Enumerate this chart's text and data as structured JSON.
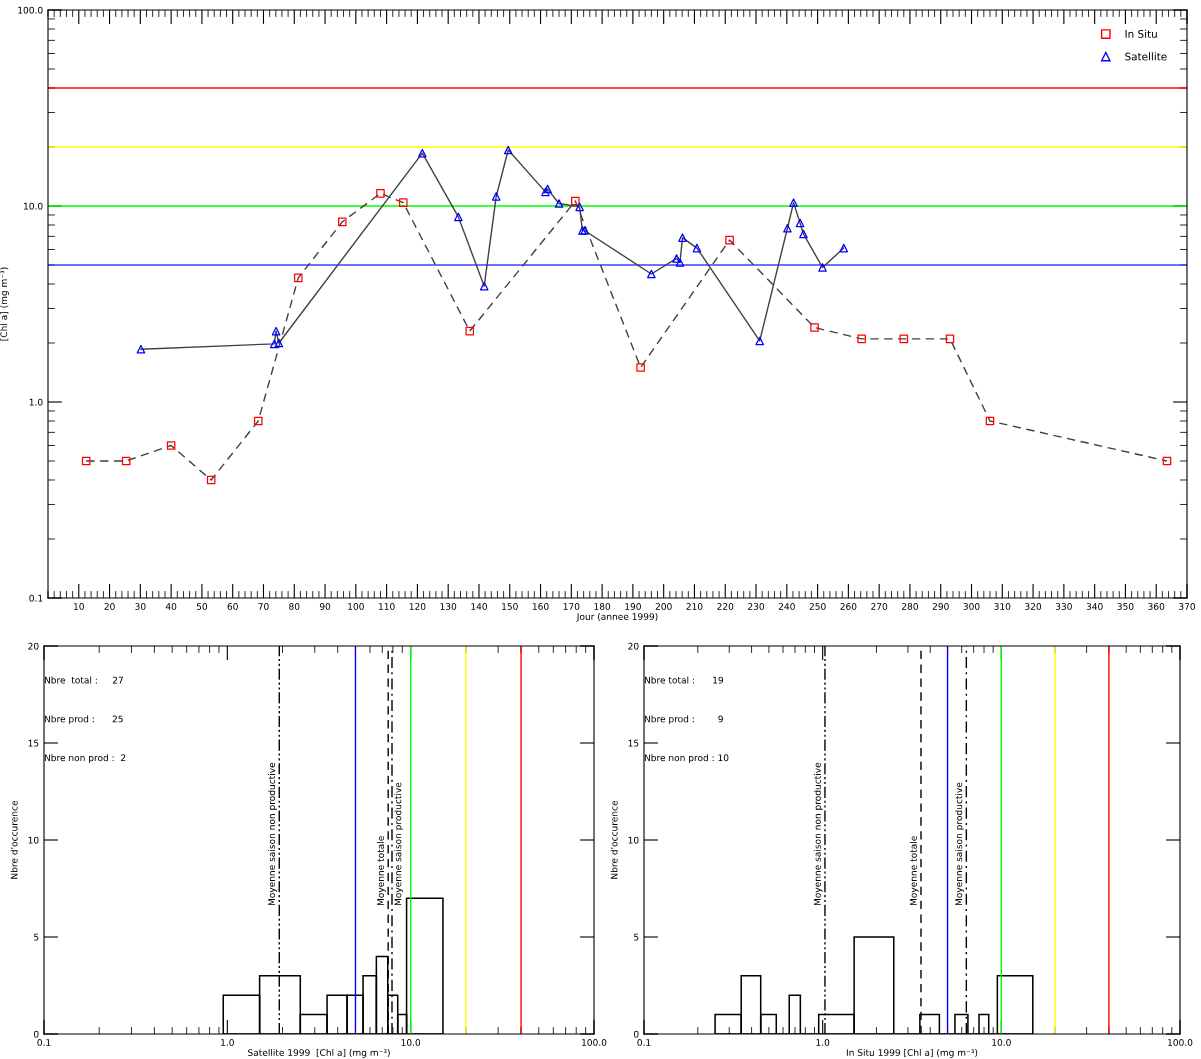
{
  "chart_data": [
    {
      "type": "line",
      "xlabel": "Jour (annee 1999)",
      "ylabel": "[Chl a] (mg m⁻³)",
      "log": "y",
      "grid": false,
      "legend": "top right",
      "xlim": [
        0,
        370
      ],
      "xticks": [
        10,
        20,
        30,
        40,
        50,
        60,
        70,
        80,
        90,
        100,
        110,
        120,
        130,
        140,
        150,
        160,
        170,
        180,
        190,
        200,
        210,
        220,
        230,
        240,
        250,
        260,
        270,
        280,
        290,
        300,
        310,
        320,
        330,
        340,
        350,
        360,
        370
      ],
      "ylim": [
        0.1,
        100
      ],
      "yticks": [
        0.1,
        {
          "value": 1,
          "label": "1.0"
        },
        {
          "value": 10,
          "label": "10.0"
        },
        {
          "value": 100,
          "label": "100.0"
        }
      ],
      "series": [
        {
          "name": "In Situ",
          "color": "#ff0000",
          "marker": "square",
          "line_style": "dashed",
          "x": [
            12.4,
            25.4,
            40,
            53,
            68.3,
            81.3,
            95.6,
            108,
            115.4,
            137,
            171.3,
            192.5,
            221.4,
            249,
            264.3,
            278,
            293,
            306,
            363.5
          ],
          "values": [
            0.5,
            0.5,
            0.6,
            0.4,
            0.8,
            4.3,
            8.3,
            11.6,
            10.4,
            2.3,
            10.6,
            1.5,
            6.7,
            2.4,
            2.1,
            2.1,
            2.1,
            0.8,
            0.5
          ]
        },
        {
          "name": "Satellite",
          "color": "#0000ff",
          "marker": "triangle",
          "line_style": "solid",
          "x": [
            30.2,
            73.5,
            74.1,
            75,
            121.6,
            133.3,
            141.7,
            145.6,
            149.5,
            161.6,
            162.3,
            166,
            172.7,
            173.6,
            174.3,
            196,
            204.2,
            205.3,
            206.1,
            210.8,
            231.2,
            240.2,
            242.2,
            244.3,
            245.4,
            251.6,
            258.5
          ],
          "values": [
            1.86,
            1.98,
            2.3,
            2.0,
            18.6,
            8.8,
            3.9,
            11.2,
            19.3,
            11.8,
            12.2,
            10.3,
            9.9,
            7.5,
            7.5,
            4.5,
            5.4,
            5.15,
            6.9,
            6.1,
            2.05,
            7.7,
            10.4,
            8.2,
            7.2,
            4.86,
            6.1
          ]
        }
      ],
      "ref_lines": [
        {
          "axis": "y",
          "value": 40,
          "color": "#ff0000"
        },
        {
          "axis": "y",
          "value": 20,
          "color": "#ffff00"
        },
        {
          "axis": "y",
          "value": 10,
          "color": "#00ff00"
        },
        {
          "axis": "y",
          "value": 5,
          "color": "#4040ff"
        }
      ]
    },
    {
      "type": "histogram",
      "xlabel": "Satellite 1999  [Chl a] (mg m⁻³)",
      "ylabel": "Nbre d'occurence",
      "log": "x",
      "grid": false,
      "xlim": [
        0.1,
        100
      ],
      "xticks": [
        0.1,
        {
          "value": 1,
          "label": "1.0"
        },
        {
          "value": 10,
          "label": "10.0"
        },
        {
          "value": 100,
          "label": "100.0"
        }
      ],
      "ylim": [
        0,
        20
      ],
      "yticks": [
        0,
        5,
        10,
        15,
        20
      ],
      "bins": [
        0.95,
        1.5,
        2.5,
        3.5,
        4.5,
        5.5,
        6.5,
        7.5,
        8.5,
        9.5,
        15
      ],
      "values": [
        2,
        3,
        1,
        2,
        2,
        3,
        4,
        2,
        1,
        7
      ],
      "annotations": [
        "Nbre  total :     27",
        "Nbre prod :      25",
        "Nbre non prod :  2"
      ],
      "ref_lines": [
        {
          "axis": "x",
          "value": 1.92,
          "label": "Moyenne saison non productive",
          "color": "#000000",
          "line_style": "dashdotdot"
        },
        {
          "axis": "x",
          "value": 7.54,
          "label": "Moyenne totale",
          "color": "#000000",
          "line_style": "dashed"
        },
        {
          "axis": "x",
          "value": 7.91,
          "label": "Moyenne saison productive",
          "color": "#000000",
          "line_style": "dashdot"
        },
        {
          "axis": "x",
          "value": 5,
          "color": "#0000ff"
        },
        {
          "axis": "x",
          "value": 10,
          "color": "#00ff00"
        },
        {
          "axis": "x",
          "value": 20,
          "color": "#ffff00"
        },
        {
          "axis": "x",
          "value": 40,
          "color": "#ff0000"
        }
      ]
    },
    {
      "type": "histogram",
      "xlabel": "In Situ 1999 [Chl a] (mg m⁻³)",
      "ylabel": "Nbre d'occurence",
      "log": "x",
      "grid": false,
      "xlim": [
        0.1,
        100
      ],
      "xticks": [
        0.1,
        {
          "value": 1,
          "label": "1.0"
        },
        {
          "value": 10,
          "label": "10.0"
        },
        {
          "value": 100,
          "label": "100.0"
        }
      ],
      "ylim": [
        0,
        20
      ],
      "yticks": [
        0,
        5,
        10,
        15,
        20
      ],
      "bins": [
        0.25,
        0.35,
        0.45,
        0.55,
        0.65,
        0.75,
        0.85,
        0.95,
        1.5,
        2.5,
        3.5,
        4.5,
        5.5,
        6.5,
        7.5,
        8.5,
        9.5,
        15
      ],
      "values": [
        1,
        3,
        1,
        0,
        2,
        0,
        0,
        1,
        5,
        0,
        1,
        0,
        1,
        0,
        1,
        0,
        3
      ],
      "annotations": [
        "Nbre total :      19",
        "Nbre prod :        9",
        "Nbre non prod : 10"
      ],
      "ref_lines": [
        {
          "axis": "x",
          "value": 1.03,
          "label": "Moyenne saison non productive",
          "color": "#000000",
          "line_style": "dashdotdot"
        },
        {
          "axis": "x",
          "value": 3.55,
          "label": "Moyenne totale",
          "color": "#000000",
          "line_style": "dashed"
        },
        {
          "axis": "x",
          "value": 6.37,
          "label": "Moyenne saison productive",
          "color": "#000000",
          "line_style": "dashdot"
        },
        {
          "axis": "x",
          "value": 5,
          "color": "#0000ff"
        },
        {
          "axis": "x",
          "value": 10,
          "color": "#00ff00"
        },
        {
          "axis": "x",
          "value": 20,
          "color": "#ffff00"
        },
        {
          "axis": "x",
          "value": 40,
          "color": "#ff0000"
        }
      ]
    }
  ]
}
